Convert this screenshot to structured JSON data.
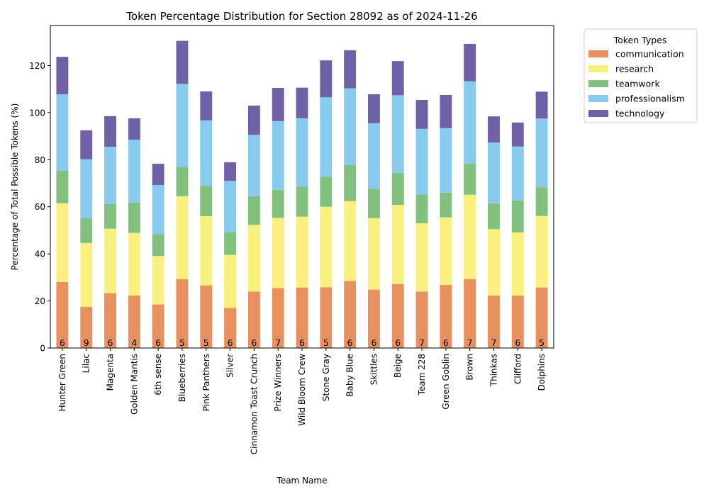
{
  "chart_data": {
    "type": "bar",
    "stacked": true,
    "title": "Token Percentage Distribution for Section 28092 as of 2024-11-26",
    "xlabel": "Team Name",
    "ylabel": "Percentage of Total Possible Tokens (%)",
    "ylim": [
      0,
      137
    ],
    "yticks": [
      0,
      20,
      40,
      60,
      80,
      100,
      120
    ],
    "grid": false,
    "legend": {
      "title": "Token Types",
      "placement": "outside-top-right"
    },
    "categories": [
      "Hunter Green",
      "Lilac",
      "Magenta",
      "Golden Mantis",
      "6th sense",
      "Blueberries",
      "Pink Panthers",
      "Silver",
      "Cinnamon Toast Crunch",
      "Prize Winners",
      "Wild Bloom Crew",
      "Stone Gray",
      "Baby Blue",
      "Skittles",
      "Beige",
      "Team 228",
      "Green Goblin",
      "Brown",
      "Thinkas",
      "Clifford",
      "Dolphins"
    ],
    "bar_labels": [
      "6",
      "9",
      "6",
      "4",
      "6",
      "5",
      "5",
      "6",
      "6",
      "7",
      "6",
      "5",
      "6",
      "6",
      "6",
      "7",
      "6",
      "7",
      "7",
      "6",
      "5"
    ],
    "series": [
      {
        "name": "communication",
        "color": "#E8915E",
        "values": [
          28,
          17.5,
          23.3,
          22.3,
          18.5,
          29.3,
          26.6,
          17,
          24,
          25.5,
          25.7,
          25.8,
          28.5,
          24.8,
          27.2,
          24,
          26.8,
          29.3,
          22.3,
          22.3,
          25.7
        ]
      },
      {
        "name": "research",
        "color": "#FAF07E",
        "values": [
          33.5,
          27.1,
          27.4,
          26.6,
          20.6,
          35.2,
          29.4,
          22.6,
          28.3,
          29.8,
          30.1,
          34.2,
          33.9,
          30.4,
          33.6,
          29,
          28.7,
          35.8,
          28.2,
          26.8,
          30.4
        ]
      },
      {
        "name": "teamwork",
        "color": "#82C07D",
        "values": [
          13.8,
          10.6,
          10.5,
          12.9,
          9.3,
          12.4,
          12.9,
          9.6,
          12.2,
          11.9,
          12.7,
          12.7,
          15.4,
          12.5,
          13.6,
          12.3,
          10.5,
          13.2,
          11,
          13.6,
          12.2
        ]
      },
      {
        "name": "professionalism",
        "color": "#87CCEE",
        "values": [
          32.5,
          25,
          24.3,
          26.7,
          20.8,
          35.3,
          27.8,
          21.8,
          26.1,
          29.2,
          29.1,
          33.8,
          32.5,
          27.8,
          33,
          27.8,
          27.4,
          35,
          25.8,
          22.9,
          29.2
        ]
      },
      {
        "name": "technology",
        "color": "#6E61A8",
        "values": [
          15.9,
          12.3,
          13,
          9.1,
          9.1,
          18.3,
          12.3,
          7.9,
          12.4,
          14.1,
          13,
          15.7,
          16.2,
          12.3,
          14.5,
          12.3,
          14.1,
          15.9,
          11.1,
          10.2,
          11.4
        ]
      }
    ]
  }
}
